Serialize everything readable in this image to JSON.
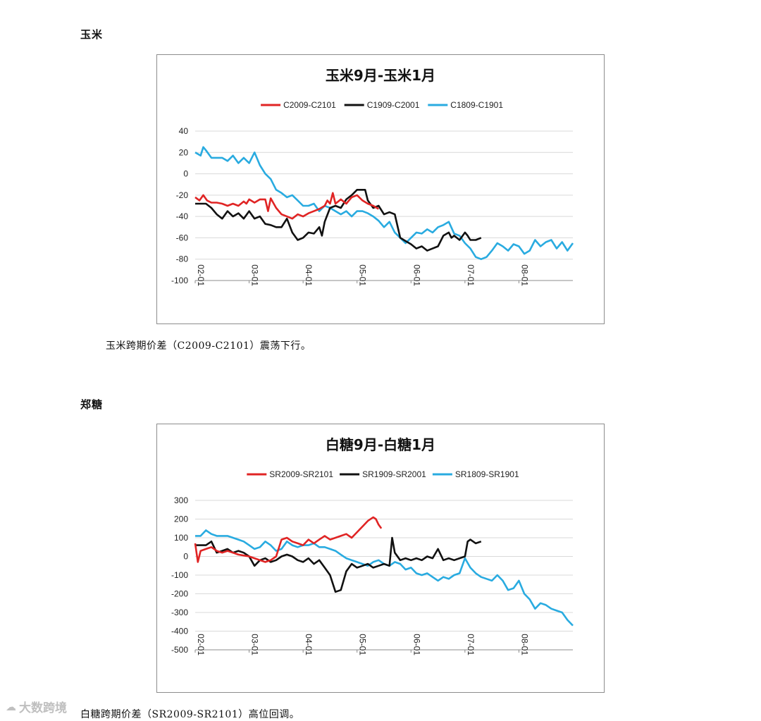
{
  "sections": [
    {
      "heading": "玉米",
      "caption": "玉米跨期价差（C2009-C2101）震荡下行。"
    },
    {
      "heading": "郑糖",
      "caption": "白糖跨期价差（SR2009-SR2101）高位回调。"
    }
  ],
  "watermark": {
    "icon": "cloud-icon",
    "text": "大数跨境"
  },
  "chart_data": [
    {
      "type": "line",
      "title": "玉米9月-玉米1月",
      "xlabel": "",
      "ylabel": "",
      "ylim": [
        -100,
        40
      ],
      "yticks": [
        40,
        20,
        0,
        -20,
        -40,
        -60,
        -80,
        -100
      ],
      "xlim": [
        0,
        7.0
      ],
      "xticks": [
        {
          "pos": 0,
          "label": "02-01"
        },
        {
          "pos": 1,
          "label": "03-01"
        },
        {
          "pos": 2,
          "label": "04-01"
        },
        {
          "pos": 3,
          "label": "05-01"
        },
        {
          "pos": 4,
          "label": "06-01"
        },
        {
          "pos": 5,
          "label": "07-01"
        },
        {
          "pos": 6,
          "label": "08-01"
        }
      ],
      "grid": true,
      "legend": "top-center",
      "series": [
        {
          "name": "C2009-C2101",
          "color": "#e02424",
          "x": [
            0,
            0.08,
            0.15,
            0.22,
            0.3,
            0.4,
            0.5,
            0.6,
            0.7,
            0.8,
            0.9,
            0.95,
            1.0,
            1.1,
            1.2,
            1.3,
            1.35,
            1.4,
            1.5,
            1.6,
            1.7,
            1.8,
            1.9,
            2.0,
            2.1,
            2.2,
            2.3,
            2.4,
            2.45,
            2.5,
            2.55,
            2.6,
            2.7,
            2.8,
            2.9,
            3.0,
            3.1,
            3.2,
            3.3,
            3.4
          ],
          "y": [
            -22,
            -25,
            -20,
            -25,
            -27,
            -27,
            -28,
            -30,
            -28,
            -30,
            -26,
            -28,
            -24,
            -27,
            -24,
            -24,
            -35,
            -23,
            -32,
            -38,
            -40,
            -42,
            -38,
            -40,
            -37,
            -35,
            -33,
            -30,
            -25,
            -28,
            -18,
            -28,
            -24,
            -28,
            -22,
            -20,
            -25,
            -28,
            -30,
            -33
          ]
        },
        {
          "name": "C1909-C2001",
          "color": "#111111",
          "x": [
            0,
            0.2,
            0.3,
            0.4,
            0.5,
            0.6,
            0.7,
            0.8,
            0.9,
            1.0,
            1.1,
            1.2,
            1.3,
            1.4,
            1.5,
            1.6,
            1.7,
            1.8,
            1.9,
            2.0,
            2.1,
            2.2,
            2.3,
            2.35,
            2.4,
            2.5,
            2.6,
            2.7,
            2.8,
            2.9,
            3.0,
            3.1,
            3.15,
            3.2,
            3.3,
            3.4,
            3.5,
            3.6,
            3.7,
            3.8,
            3.9,
            4.0,
            4.1,
            4.2,
            4.3,
            4.4,
            4.5,
            4.6,
            4.7,
            4.75,
            4.8,
            4.9,
            5.0,
            5.05,
            5.1,
            5.2,
            5.3
          ],
          "y": [
            -28,
            -28,
            -32,
            -38,
            -42,
            -35,
            -40,
            -37,
            -42,
            -35,
            -42,
            -40,
            -47,
            -48,
            -50,
            -50,
            -42,
            -55,
            -62,
            -60,
            -55,
            -56,
            -50,
            -58,
            -45,
            -32,
            -30,
            -32,
            -24,
            -20,
            -15,
            -15,
            -15,
            -25,
            -32,
            -30,
            -38,
            -36,
            -38,
            -60,
            -63,
            -66,
            -70,
            -68,
            -72,
            -70,
            -68,
            -58,
            -55,
            -60,
            -58,
            -62,
            -55,
            -58,
            -62,
            -62,
            -60
          ]
        },
        {
          "name": "C1809-C1901",
          "color": "#29abe0",
          "x": [
            0,
            0.1,
            0.15,
            0.2,
            0.3,
            0.4,
            0.5,
            0.6,
            0.7,
            0.8,
            0.9,
            1.0,
            1.1,
            1.2,
            1.3,
            1.4,
            1.5,
            1.6,
            1.7,
            1.8,
            1.9,
            2.0,
            2.1,
            2.2,
            2.3,
            2.4,
            2.5,
            2.6,
            2.7,
            2.8,
            2.9,
            3.0,
            3.1,
            3.2,
            3.3,
            3.4,
            3.5,
            3.6,
            3.7,
            3.8,
            3.9,
            4.0,
            4.1,
            4.2,
            4.3,
            4.4,
            4.5,
            4.6,
            4.7,
            4.8,
            4.9,
            5.0,
            5.1,
            5.2,
            5.3,
            5.4,
            5.5,
            5.6,
            5.7,
            5.8,
            5.9,
            6.0,
            6.1,
            6.2,
            6.3,
            6.4,
            6.5,
            6.6,
            6.7,
            6.8,
            6.9,
            7.0
          ],
          "y": [
            20,
            17,
            25,
            22,
            15,
            15,
            15,
            12,
            17,
            10,
            15,
            10,
            20,
            8,
            0,
            -5,
            -15,
            -18,
            -22,
            -20,
            -25,
            -30,
            -30,
            -28,
            -35,
            -30,
            -32,
            -35,
            -38,
            -35,
            -40,
            -35,
            -35,
            -37,
            -40,
            -44,
            -50,
            -45,
            -55,
            -60,
            -65,
            -60,
            -55,
            -56,
            -52,
            -55,
            -50,
            -48,
            -45,
            -56,
            -58,
            -65,
            -70,
            -78,
            -80,
            -78,
            -72,
            -65,
            -68,
            -72,
            -66,
            -68,
            -75,
            -72,
            -62,
            -68,
            -64,
            -62,
            -70,
            -64,
            -72,
            -65
          ]
        }
      ]
    },
    {
      "type": "line",
      "title": "白糖9月-白糖1月",
      "xlabel": "",
      "ylabel": "",
      "ylim": [
        -500,
        300
      ],
      "yticks": [
        300,
        200,
        100,
        0,
        -100,
        -200,
        -300,
        -400,
        -500
      ],
      "xlim": [
        0,
        7.0
      ],
      "xticks": [
        {
          "pos": 0,
          "label": "02-01"
        },
        {
          "pos": 1,
          "label": "03-01"
        },
        {
          "pos": 2,
          "label": "04-01"
        },
        {
          "pos": 3,
          "label": "05-01"
        },
        {
          "pos": 4,
          "label": "06-01"
        },
        {
          "pos": 5,
          "label": "07-01"
        },
        {
          "pos": 6,
          "label": "08-01"
        }
      ],
      "grid": true,
      "legend": "top-center",
      "series": [
        {
          "name": "SR2009-SR2101",
          "color": "#e02424",
          "x": [
            0,
            0.05,
            0.1,
            0.2,
            0.3,
            0.4,
            0.5,
            0.6,
            0.7,
            0.8,
            0.9,
            1.0,
            1.1,
            1.2,
            1.3,
            1.4,
            1.5,
            1.6,
            1.7,
            1.8,
            1.9,
            2.0,
            2.1,
            2.2,
            2.3,
            2.4,
            2.5,
            2.6,
            2.7,
            2.8,
            2.9,
            3.0,
            3.1,
            3.2,
            3.3,
            3.35,
            3.4,
            3.45
          ],
          "y": [
            70,
            -30,
            30,
            40,
            50,
            30,
            20,
            30,
            20,
            10,
            5,
            0,
            -10,
            -20,
            -30,
            -20,
            0,
            90,
            100,
            80,
            70,
            60,
            90,
            70,
            90,
            110,
            90,
            100,
            110,
            120,
            100,
            130,
            160,
            190,
            210,
            200,
            170,
            150
          ]
        },
        {
          "name": "SR1909-SR2001",
          "color": "#111111",
          "x": [
            0,
            0.1,
            0.2,
            0.3,
            0.4,
            0.5,
            0.6,
            0.7,
            0.8,
            0.9,
            1.0,
            1.1,
            1.2,
            1.3,
            1.4,
            1.5,
            1.6,
            1.7,
            1.8,
            1.9,
            2.0,
            2.1,
            2.2,
            2.3,
            2.4,
            2.5,
            2.6,
            2.7,
            2.8,
            2.9,
            3.0,
            3.1,
            3.2,
            3.3,
            3.4,
            3.5,
            3.6,
            3.65,
            3.7,
            3.8,
            3.9,
            4.0,
            4.1,
            4.2,
            4.3,
            4.4,
            4.5,
            4.6,
            4.7,
            4.8,
            4.9,
            5.0,
            5.05,
            5.1,
            5.2,
            5.3
          ],
          "y": [
            60,
            60,
            60,
            80,
            20,
            30,
            40,
            20,
            30,
            20,
            0,
            -50,
            -20,
            -10,
            -30,
            -20,
            0,
            10,
            0,
            -20,
            -30,
            -10,
            -40,
            -20,
            -60,
            -100,
            -190,
            -180,
            -80,
            -40,
            -60,
            -50,
            -40,
            -60,
            -50,
            -40,
            -50,
            100,
            20,
            -20,
            -10,
            -20,
            -10,
            -20,
            0,
            -10,
            40,
            -20,
            -10,
            -20,
            -10,
            0,
            80,
            90,
            70,
            80
          ]
        },
        {
          "name": "SR1809-SR1901",
          "color": "#29abe0",
          "x": [
            0,
            0.1,
            0.2,
            0.3,
            0.4,
            0.5,
            0.6,
            0.7,
            0.8,
            0.9,
            1.0,
            1.1,
            1.2,
            1.3,
            1.4,
            1.5,
            1.6,
            1.7,
            1.8,
            1.9,
            2.0,
            2.1,
            2.2,
            2.3,
            2.4,
            2.5,
            2.6,
            2.7,
            2.8,
            2.9,
            3.0,
            3.1,
            3.2,
            3.3,
            3.4,
            3.5,
            3.6,
            3.7,
            3.8,
            3.9,
            4.0,
            4.1,
            4.2,
            4.3,
            4.4,
            4.5,
            4.6,
            4.7,
            4.8,
            4.9,
            5.0,
            5.1,
            5.2,
            5.3,
            5.4,
            5.5,
            5.6,
            5.7,
            5.8,
            5.9,
            6.0,
            6.1,
            6.2,
            6.3,
            6.4,
            6.5,
            6.6,
            6.7,
            6.8,
            6.9,
            7.0
          ],
          "y": [
            110,
            110,
            140,
            120,
            110,
            110,
            110,
            100,
            90,
            80,
            60,
            40,
            50,
            80,
            60,
            30,
            40,
            80,
            60,
            50,
            60,
            60,
            70,
            50,
            50,
            40,
            30,
            10,
            -10,
            -20,
            -30,
            -40,
            -50,
            -30,
            -20,
            -40,
            -50,
            -30,
            -40,
            -70,
            -60,
            -90,
            -100,
            -90,
            -110,
            -130,
            -110,
            -120,
            -100,
            -90,
            -10,
            -60,
            -90,
            -110,
            -120,
            -130,
            -100,
            -130,
            -180,
            -170,
            -130,
            -200,
            -230,
            -280,
            -250,
            -260,
            -280,
            -290,
            -300,
            -340,
            -370
          ]
        }
      ]
    }
  ]
}
